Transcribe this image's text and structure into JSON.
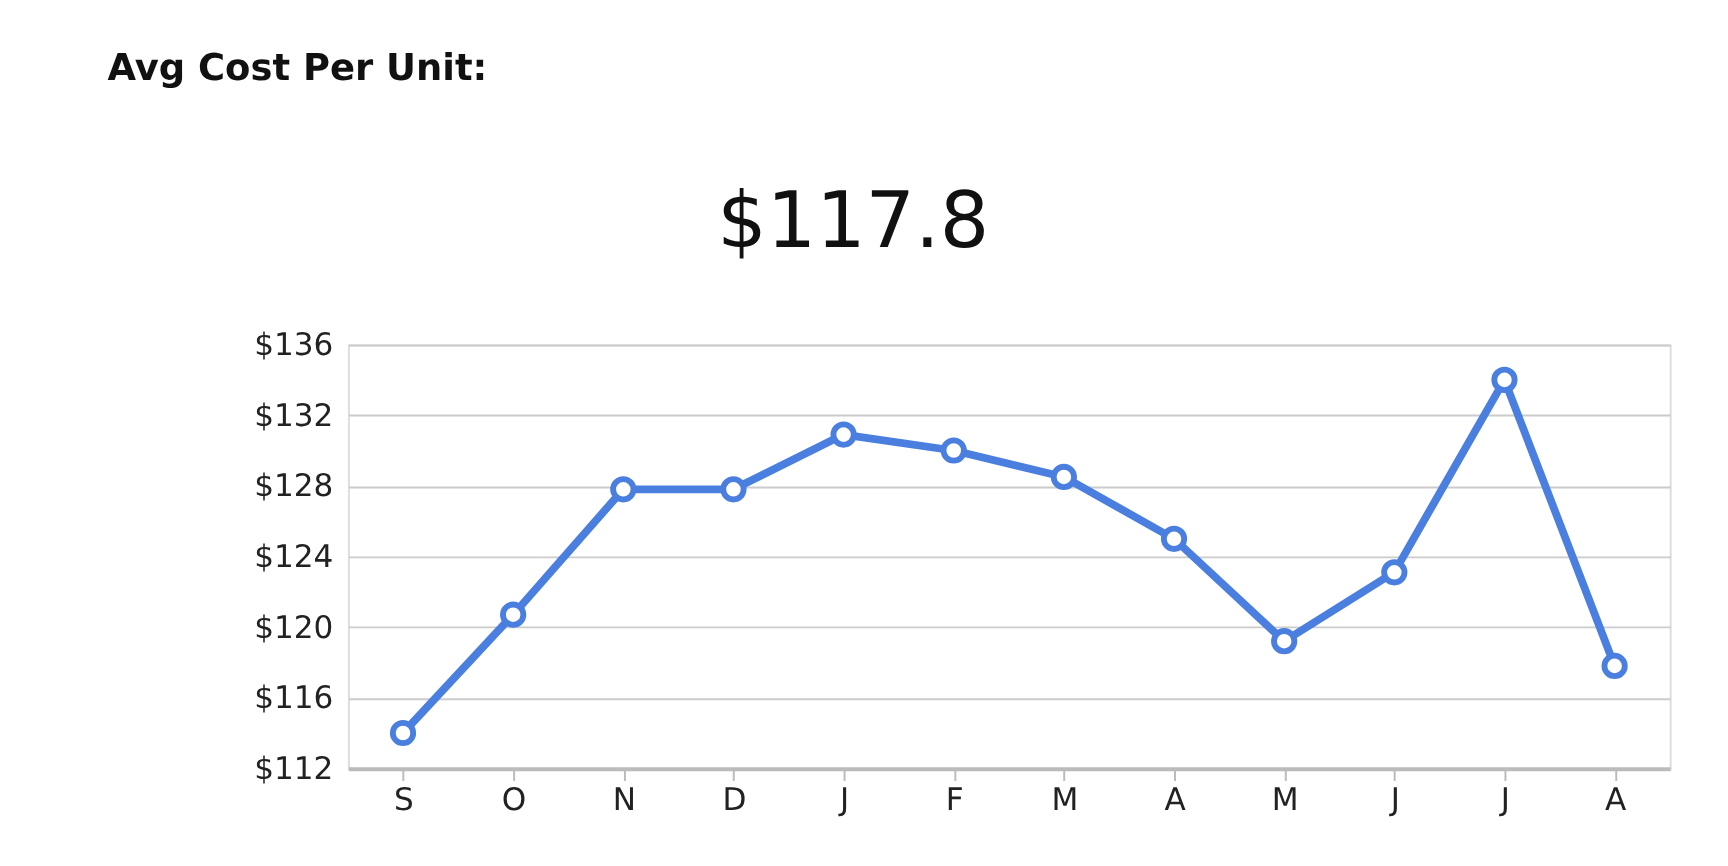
{
  "chart_data": {
    "type": "line",
    "title": "Avg Cost Per Unit:",
    "annotations": [
      "$117.8"
    ],
    "categories": [
      "S",
      "O",
      "N",
      "D",
      "J",
      "F",
      "M",
      "A",
      "M",
      "J",
      "J",
      "A"
    ],
    "series": [
      {
        "color": "#4a7fe0",
        "values": [
          114.0,
          120.7,
          127.8,
          127.8,
          130.9,
          130.0,
          128.5,
          125.0,
          119.2,
          123.1,
          134.0,
          117.8
        ]
      }
    ],
    "ylim": [
      112,
      136
    ],
    "yticks": [
      {
        "value": 112,
        "label": "$112"
      },
      {
        "value": 116,
        "label": "$116"
      },
      {
        "value": 120,
        "label": "$120"
      },
      {
        "value": 124,
        "label": "$124"
      },
      {
        "value": 128,
        "label": "$128"
      },
      {
        "value": 132,
        "label": "$132"
      },
      {
        "value": 136,
        "label": "$136"
      }
    ],
    "grid": "y",
    "marker": "circle",
    "line_style": "solid"
  }
}
